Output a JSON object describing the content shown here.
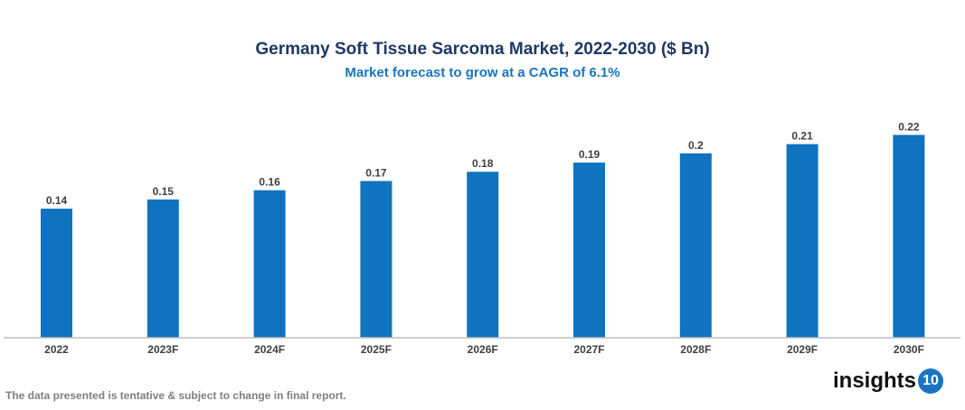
{
  "chart_data": {
    "type": "bar",
    "title": "Germany Soft Tissue Sarcoma Market, 2022-2030 ($ Bn)",
    "subtitle": "Market forecast to grow at a CAGR of 6.1%",
    "categories": [
      "2022",
      "2023F",
      "2024F",
      "2025F",
      "2026F",
      "2027F",
      "2028F",
      "2029F",
      "2030F"
    ],
    "values": [
      0.14,
      0.15,
      0.16,
      0.17,
      0.18,
      0.19,
      0.2,
      0.21,
      0.22
    ],
    "ylim": [
      0,
      0.22
    ],
    "grid": false,
    "bar_color": "#1073bf"
  },
  "footer": {
    "note": "The data presented is tentative & subject to change in final report.",
    "logo_text": "insights",
    "logo_number": "10"
  }
}
